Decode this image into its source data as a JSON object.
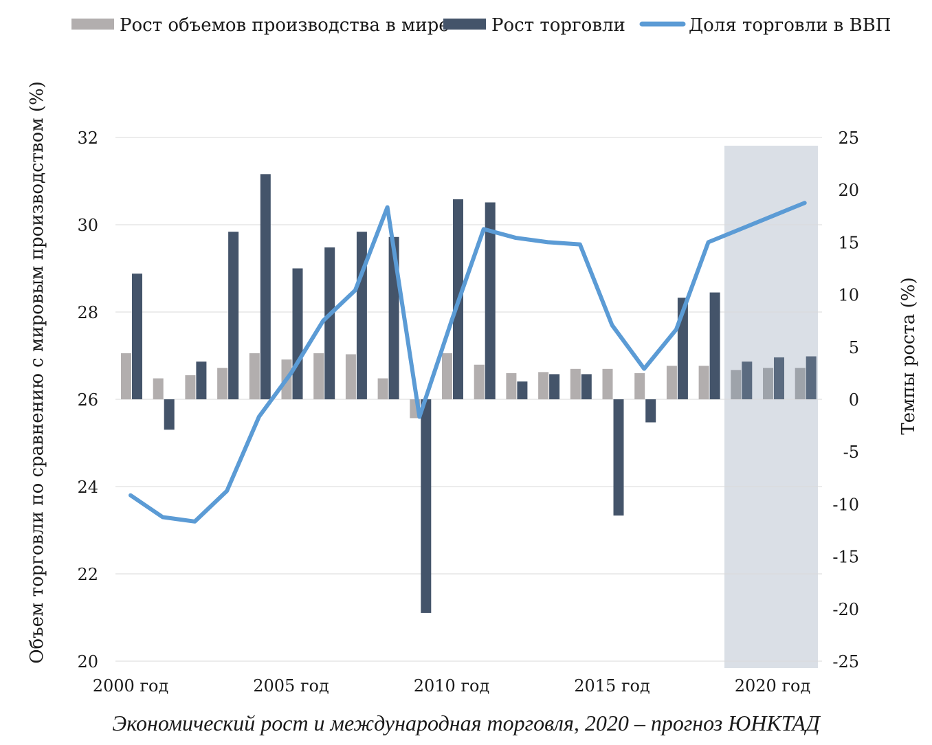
{
  "caption": "Экономический рост и международная торговля, 2020 – прогноз ЮНКТАД",
  "chart_data": {
    "type": "bar+line",
    "legend": {
      "position": "top",
      "items": [
        {
          "label": "Рост объемов производства  в мире",
          "kind": "bar",
          "color": "#b2aeae"
        },
        {
          "label": "Рост торговли",
          "kind": "bar",
          "color": "#44546a"
        },
        {
          "label": "Доля торговли в ВВП",
          "kind": "line",
          "color": "#5b9bd5"
        }
      ]
    },
    "left_axis": {
      "title": "Объем торговли по сравнению с мировым производством (%)",
      "range": [
        20,
        32
      ],
      "ticks": [
        "20",
        "22",
        "24",
        "26",
        "28",
        "30",
        "32"
      ]
    },
    "right_axis": {
      "title": "Темпы роста  (%)",
      "range": [
        -25,
        25
      ],
      "ticks": [
        "-25",
        "-20",
        "-15",
        "-10",
        "-5",
        "0",
        "5",
        "10",
        "15",
        "20",
        "25"
      ]
    },
    "x_labels": [
      {
        "label": "2000 год",
        "year": 2000
      },
      {
        "label": "2005  год",
        "year": 2005
      },
      {
        "label": "2010  год",
        "year": 2010
      },
      {
        "label": "2015  год",
        "year": 2015
      },
      {
        "label": "2020  год",
        "year": 2020
      }
    ],
    "years": [
      2000,
      2001,
      2002,
      2003,
      2004,
      2005,
      2006,
      2007,
      2008,
      2009,
      2010,
      2011,
      2012,
      2013,
      2014,
      2015,
      2016,
      2017,
      2018,
      2019,
      2020,
      2021
    ],
    "forecast_from_year": 2019,
    "forecast_color": "#dadfe6",
    "series": [
      {
        "name": "Рост объемов производства  в мире",
        "axis": "right",
        "type": "bar",
        "color": "#b2aeae",
        "forecast_color": "#9ea3aa",
        "values": [
          4.4,
          2.0,
          2.3,
          3.0,
          4.4,
          3.8,
          4.4,
          4.3,
          2.0,
          -1.8,
          4.4,
          3.3,
          2.5,
          2.6,
          2.9,
          2.9,
          2.5,
          3.2,
          3.2,
          2.8,
          3.0,
          3.0
        ]
      },
      {
        "name": "Рост торговли",
        "axis": "right",
        "type": "bar",
        "color": "#44546a",
        "forecast_color": "#5b6b80",
        "values": [
          12.0,
          -2.9,
          3.6,
          16.0,
          21.5,
          12.5,
          14.5,
          16.0,
          15.5,
          -20.4,
          19.1,
          18.8,
          1.7,
          2.4,
          2.4,
          -11.1,
          -2.2,
          9.7,
          10.2,
          3.6,
          4.0,
          4.1
        ]
      },
      {
        "name": "Доля торговли в ВВП",
        "axis": "left",
        "type": "line",
        "color": "#5b9bd5",
        "values": [
          23.8,
          23.3,
          23.2,
          23.9,
          25.6,
          26.6,
          27.8,
          28.5,
          30.4,
          25.6,
          27.8,
          29.9,
          29.7,
          29.6,
          29.55,
          27.7,
          26.7,
          27.6,
          29.6,
          29.9,
          30.2,
          30.5
        ]
      }
    ]
  }
}
